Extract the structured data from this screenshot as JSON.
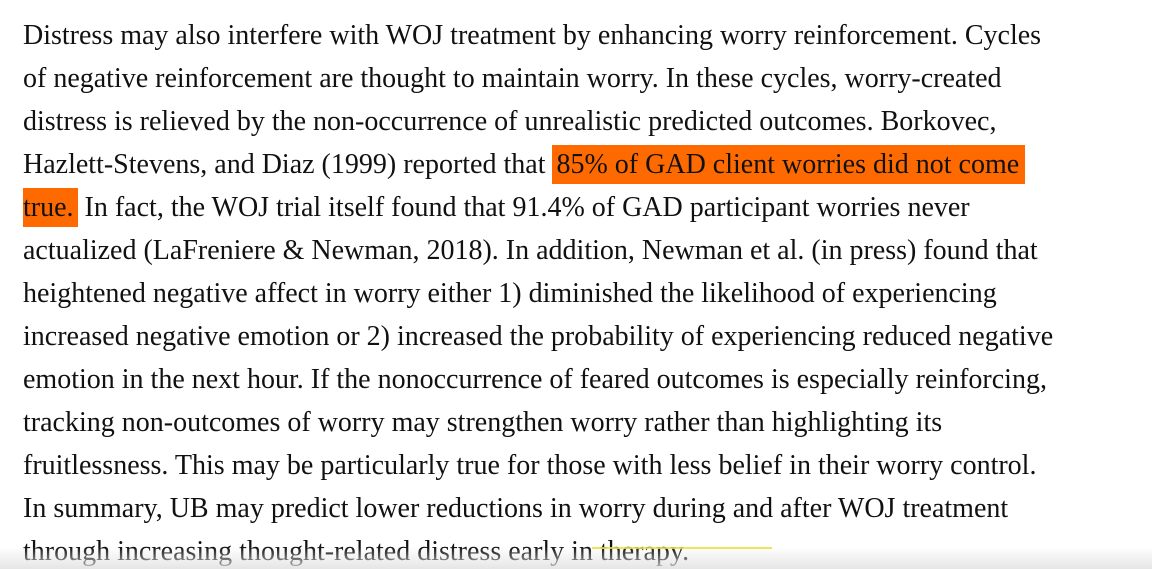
{
  "paragraph": {
    "lines": [
      "Distress may also interfere with WOJ treatment by enhancing worry reinforcement. Cycles",
      "of negative reinforcement are thought to maintain worry. In these cycles, worry-created",
      "distress is relieved by the non-occurrence of unrealistic predicted outcomes. Borkovec,",
      "Hazlett-Stevens, and Diaz (1999) reported that ",
      "85% of GAD client worries did not come",
      "true.",
      " In fact, the WOJ trial itself found that 91.4% of GAD participant worries never",
      "actualized (LaFreniere & Newman, 2018). In addition, Newman et al. (in press) found that",
      "heightened negative affect in worry either 1) diminished the likelihood of experiencing",
      "increased negative emotion or 2) increased the probability of experiencing reduced negative",
      "emotion in the next hour. If the nonoccurrence of feared outcomes is especially reinforcing,",
      "tracking non-outcomes of worry may strengthen worry rather than highlighting its",
      "fruitlessness. This may be particularly true for those with less belief in their worry control.",
      "In summary, UB may predict lower reductions in worry during and after WOJ treatment",
      "through increasing thought-related distress early in therapy."
    ]
  },
  "colors": {
    "highlight": "#ff6a00",
    "text": "#111111",
    "underline": "#e8e23a"
  }
}
